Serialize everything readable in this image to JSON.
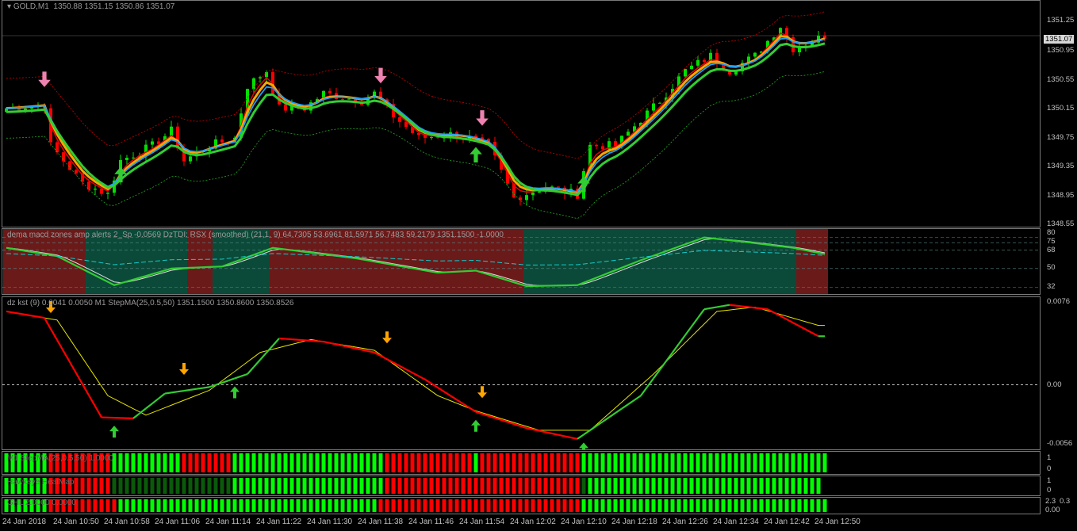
{
  "header": {
    "symbol": "GOLD,M1",
    "ohlc": "1350.88 1351.15 1350.86 1351.07"
  },
  "price_axis": {
    "ticks": [
      "1351.25",
      "1350.95",
      "1350.55",
      "1350.15",
      "1349.75",
      "1349.35",
      "1348.95",
      "1348.55"
    ],
    "current": "1351.07"
  },
  "rsx_panel": {
    "label": "dema macd zones amp alerts 2_Sp -0.0569  DzTDI:  RSX (smoothed) (21,1, 9) 64.7305 53.6961 81.5971 56.7483 59.2179 1351.1500 -1.0000",
    "ticks": [
      "80",
      "75",
      "68",
      "50",
      "32"
    ]
  },
  "kst_panel": {
    "label": "dz kst (9) 0.0041 0.0050  M1 StepMA(25,0.5,50) 1351.1500 1350.8600 1350.8526",
    "ticks": [
      "0.0076",
      "0.00",
      "-0.0056"
    ]
  },
  "stepma_panel": {
    "label": "M1 StepMA(25,0.5,50) 1.0000",
    "ticks": [
      "1",
      "0"
    ]
  },
  "heatmap_panel": {
    "label": "Hawkeye HeatMap",
    "ticks": [
      "1",
      "0"
    ]
  },
  "ghl_panel": {
    "label": "GHL 2.0000 0.0000",
    "ticks": [
      "2.3",
      "0.3",
      "0.00"
    ]
  },
  "time_axis": [
    "24 Jan 2018",
    "24 Jan 10:50",
    "24 Jan 10:58",
    "24 Jan 11:06",
    "24 Jan 11:14",
    "24 Jan 11:22",
    "24 Jan 11:30",
    "24 Jan 11:38",
    "24 Jan 11:46",
    "24 Jan 11:54",
    "24 Jan 12:02",
    "24 Jan 12:10",
    "24 Jan 12:18",
    "24 Jan 12:26",
    "24 Jan 12:34",
    "24 Jan 12:42",
    "24 Jan 12:50"
  ],
  "colors": {
    "bull": "#00e000",
    "bear": "#ff0000",
    "ma_orange": "#ffa500",
    "ma_blue": "#1e9fff",
    "ma_green": "#32cd32",
    "up_arrow": "#32cd32",
    "down_arrow": "#ee82b0",
    "zone_red": "#6b1a1a",
    "zone_green": "#0b4a38"
  },
  "chart_data": {
    "type": "candlestick",
    "bars_per_minute": 1,
    "price_keypoints": [
      [
        0,
        1350.1
      ],
      [
        6,
        1350.15
      ],
      [
        7,
        1349.6
      ],
      [
        12,
        1349.1
      ],
      [
        16,
        1348.95
      ],
      [
        18,
        1349.4
      ],
      [
        23,
        1349.6
      ],
      [
        26,
        1349.8
      ],
      [
        28,
        1349.4
      ],
      [
        32,
        1349.6
      ],
      [
        36,
        1349.7
      ],
      [
        38,
        1350.4
      ],
      [
        41,
        1350.6
      ],
      [
        43,
        1350.1
      ],
      [
        47,
        1350.1
      ],
      [
        50,
        1350.3
      ],
      [
        56,
        1350.2
      ],
      [
        58,
        1350.3
      ],
      [
        61,
        1350.0
      ],
      [
        65,
        1349.7
      ],
      [
        70,
        1349.75
      ],
      [
        73,
        1349.7
      ],
      [
        76,
        1349.6
      ],
      [
        80,
        1348.9
      ],
      [
        85,
        1349.05
      ],
      [
        90,
        1348.95
      ],
      [
        92,
        1349.6
      ],
      [
        96,
        1349.6
      ],
      [
        100,
        1349.95
      ],
      [
        103,
        1350.2
      ],
      [
        107,
        1350.6
      ],
      [
        111,
        1350.8
      ],
      [
        114,
        1350.6
      ],
      [
        118,
        1350.8
      ],
      [
        122,
        1351.2
      ],
      [
        124,
        1350.9
      ],
      [
        129,
        1351.07
      ]
    ],
    "up_arrows_bars": [
      18,
      74,
      91
    ],
    "down_arrows_bars": [
      6,
      59,
      75
    ],
    "kst_keypoints": [
      [
        0,
        0.0068
      ],
      [
        6,
        0.0062
      ],
      [
        15,
        -0.003
      ],
      [
        20,
        -0.0031
      ],
      [
        25,
        -0.0008
      ],
      [
        32,
        -0.0002
      ],
      [
        38,
        0.001
      ],
      [
        43,
        0.0043
      ],
      [
        50,
        0.004
      ],
      [
        58,
        0.003
      ],
      [
        66,
        0.0005
      ],
      [
        74,
        -0.0025
      ],
      [
        82,
        -0.004
      ],
      [
        90,
        -0.005
      ],
      [
        100,
        -0.001
      ],
      [
        110,
        0.007
      ],
      [
        114,
        0.0074
      ],
      [
        120,
        0.007
      ],
      [
        128,
        0.0045
      ]
    ],
    "kst_signal_keypoints": [
      [
        0,
        0.0068
      ],
      [
        8,
        0.006
      ],
      [
        16,
        -0.001
      ],
      [
        22,
        -0.0028
      ],
      [
        32,
        -0.0005
      ],
      [
        40,
        0.003
      ],
      [
        48,
        0.0042
      ],
      [
        58,
        0.0032
      ],
      [
        68,
        -0.001
      ],
      [
        74,
        -0.0024
      ],
      [
        84,
        -0.0042
      ],
      [
        92,
        -0.0042
      ],
      [
        102,
        0.001
      ],
      [
        112,
        0.0068
      ],
      [
        118,
        0.0072
      ],
      [
        128,
        0.0055
      ]
    ],
    "kst_up_arrows": [
      17,
      36,
      74,
      91
    ],
    "kst_down_arrows": [
      7,
      28,
      60,
      75
    ],
    "rsx_keypoints": [
      [
        0,
        70
      ],
      [
        8,
        62
      ],
      [
        17,
        34
      ],
      [
        26,
        50
      ],
      [
        34,
        52
      ],
      [
        42,
        70
      ],
      [
        55,
        60
      ],
      [
        68,
        46
      ],
      [
        74,
        48
      ],
      [
        82,
        33
      ],
      [
        90,
        34
      ],
      [
        100,
        58
      ],
      [
        110,
        80
      ],
      [
        116,
        76
      ],
      [
        124,
        70
      ],
      [
        129,
        64
      ]
    ],
    "rsx_zones": [
      [
        0,
        12,
        "red"
      ],
      [
        13,
        25,
        "green"
      ],
      [
        26,
        28,
        "green"
      ],
      [
        29,
        32,
        "red"
      ],
      [
        33,
        41,
        "green"
      ],
      [
        42,
        81,
        "red"
      ],
      [
        82,
        96,
        "green"
      ],
      [
        97,
        124,
        "green"
      ],
      [
        125,
        129,
        "red"
      ]
    ],
    "stepma_runs": [
      [
        0,
        6,
        "g"
      ],
      [
        7,
        16,
        "r"
      ],
      [
        17,
        27,
        "g"
      ],
      [
        28,
        35,
        "r"
      ],
      [
        36,
        59,
        "g"
      ],
      [
        60,
        73,
        "r"
      ],
      [
        74,
        74,
        "g"
      ],
      [
        75,
        90,
        "r"
      ],
      [
        91,
        129,
        "g"
      ]
    ],
    "heatmap_runs": [
      [
        0,
        6,
        "g"
      ],
      [
        7,
        16,
        "r"
      ],
      [
        17,
        35,
        "d"
      ],
      [
        36,
        59,
        "g"
      ],
      [
        60,
        90,
        "r"
      ],
      [
        91,
        91,
        "d"
      ],
      [
        92,
        128,
        "g"
      ]
    ],
    "ghl_runs": [
      [
        0,
        6,
        "g"
      ],
      [
        7,
        17,
        "r"
      ],
      [
        18,
        58,
        "g"
      ],
      [
        59,
        90,
        "r"
      ],
      [
        91,
        129,
        "g"
      ]
    ]
  }
}
